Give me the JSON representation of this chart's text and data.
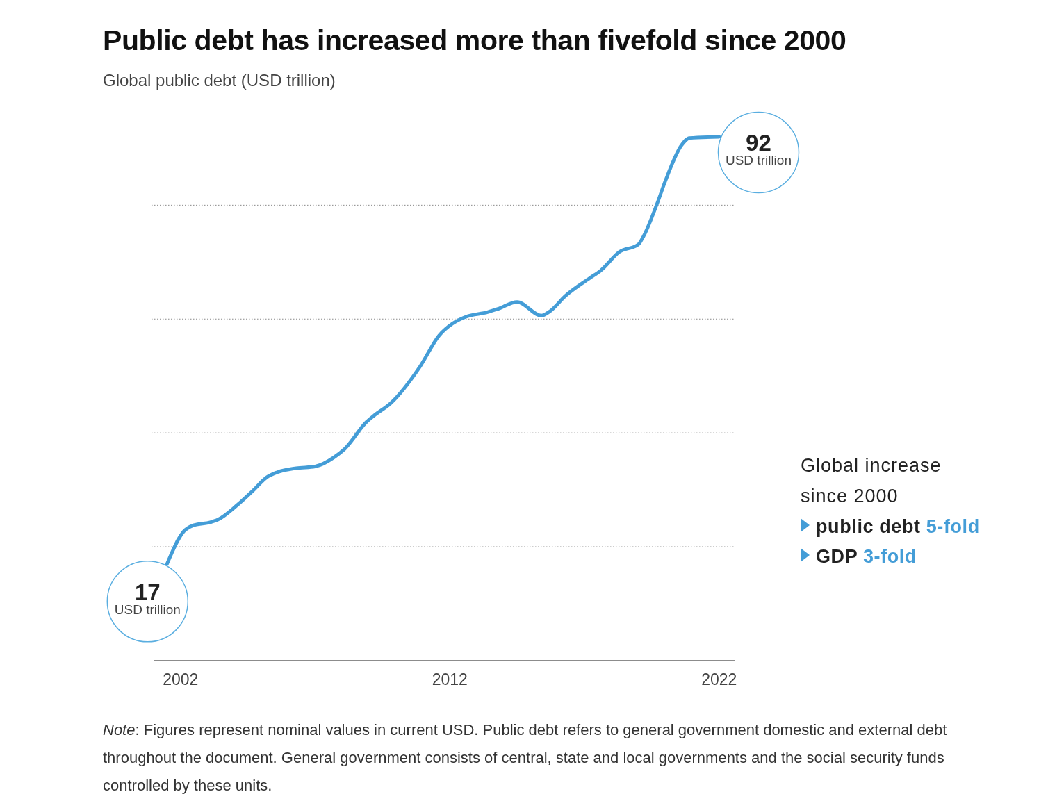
{
  "chart_data": {
    "type": "line",
    "title": "Public debt has increased more than fivefold since 2000",
    "subtitle": "Global public debt (USD trillion)",
    "x": [
      2001.5,
      2002.1,
      2002.5,
      2003.1,
      2003.4,
      2004.1,
      2004.7,
      2005.2,
      2005.6,
      2006.3,
      2007.0,
      2007.7,
      2008.1,
      2008.9,
      2009.2,
      2009.8,
      2010.9,
      2011.6,
      2012.1,
      2012.6,
      2013.4,
      2013.8,
      2014.5,
      2015.4,
      2015.7,
      2016.3,
      2017.2,
      2017.6,
      2018.3,
      2019.0,
      2019.2,
      2019.7,
      2020.0,
      2020.6,
      2020.9,
      2022
    ],
    "series": [
      {
        "color": "#449dd7",
        "values": [
          17,
          22.6,
          23.8,
          24.3,
          24.8,
          27.3,
          29.9,
          32.2,
          33.1,
          33.8,
          34.1,
          35.7,
          37.2,
          41.9,
          43.1,
          45.2,
          51.7,
          57.1,
          59.2,
          60.4,
          61.2,
          61.8,
          63.0,
          60.6,
          61.3,
          64.1,
          67.2,
          68.5,
          71.8,
          73.1,
          74.6,
          80.3,
          84.2,
          90.5,
          91.8,
          92
        ],
        "value_labels": [
          "17 USD trillion",
          null,
          null,
          null,
          null,
          null,
          null,
          null,
          null,
          null,
          null,
          null,
          null,
          null,
          null,
          null,
          null,
          null,
          null,
          null,
          null,
          null,
          null,
          null,
          null,
          null,
          null,
          null,
          null,
          null,
          null,
          null,
          null,
          null,
          null,
          "92 USD trillion"
        ]
      }
    ],
    "xlim": [
      2001,
      2022.6
    ],
    "xticks": [
      2002,
      2012,
      2022
    ],
    "yticks": [
      {
        "value": 20,
        "label": null
      },
      {
        "value": 40,
        "label": null
      },
      {
        "value": 60,
        "label": null
      },
      {
        "value": 80,
        "label": null
      }
    ],
    "grid": "y",
    "tick_labels": "x",
    "annotations": [
      "Global increase since 2000",
      "public debt 5-fold",
      "GDP 3-fold",
      "Note: Figures represent nominal values in current USD. Public debt refers to general government domestic and external debt throughout the document. General government consists of central, state and local governments and the social security funds controlled by these units."
    ]
  }
}
